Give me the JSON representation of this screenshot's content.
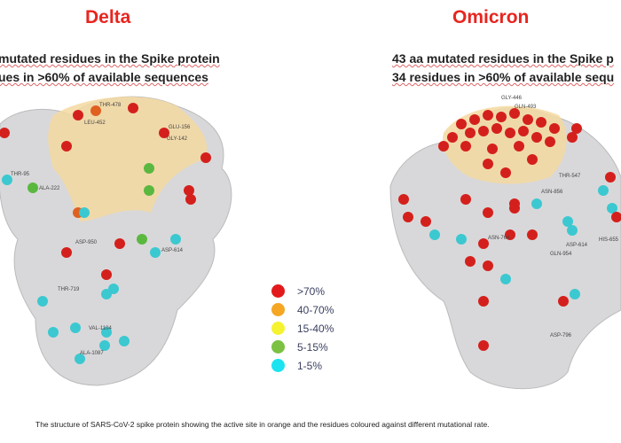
{
  "panels": {
    "delta": {
      "title": "Delta",
      "line1": "mutated residues in the Spike protein",
      "line2": "ues in >60% of available sequences",
      "residue_labels": [
        "THR-478",
        "LEU-452",
        "GLU-156",
        "GLY-142",
        "THR-95",
        "ALA-222",
        "ASP-950",
        "ASP-614",
        "THR-719",
        "VAL-1104",
        "ALA-1087"
      ]
    },
    "omicron": {
      "title": "Omicron",
      "line1": "43 aa mutated residues in the Spike p",
      "line2": "34 residues in >60% of available sequ",
      "residue_labels": [
        "GLY-446",
        "GLN-493",
        "THR-547",
        "ASN-856",
        "ASP-614",
        "HIS-655",
        "GLN-954",
        "ASN-764",
        "ASP-796"
      ]
    }
  },
  "legend": [
    {
      "label": ">70%",
      "color": "#e31a1c"
    },
    {
      "label": "40-70%",
      "color": "#f5a623"
    },
    {
      "label": "15-40%",
      "color": "#f5f230"
    },
    {
      "label": "5-15%",
      "color": "#7cc142"
    },
    {
      "label": "1-5%",
      "color": "#1de3f0"
    }
  ],
  "caption": "The structure of SARS-CoV-2 spike protein showing the active site in orange and the residues coloured against different mutational rate."
}
